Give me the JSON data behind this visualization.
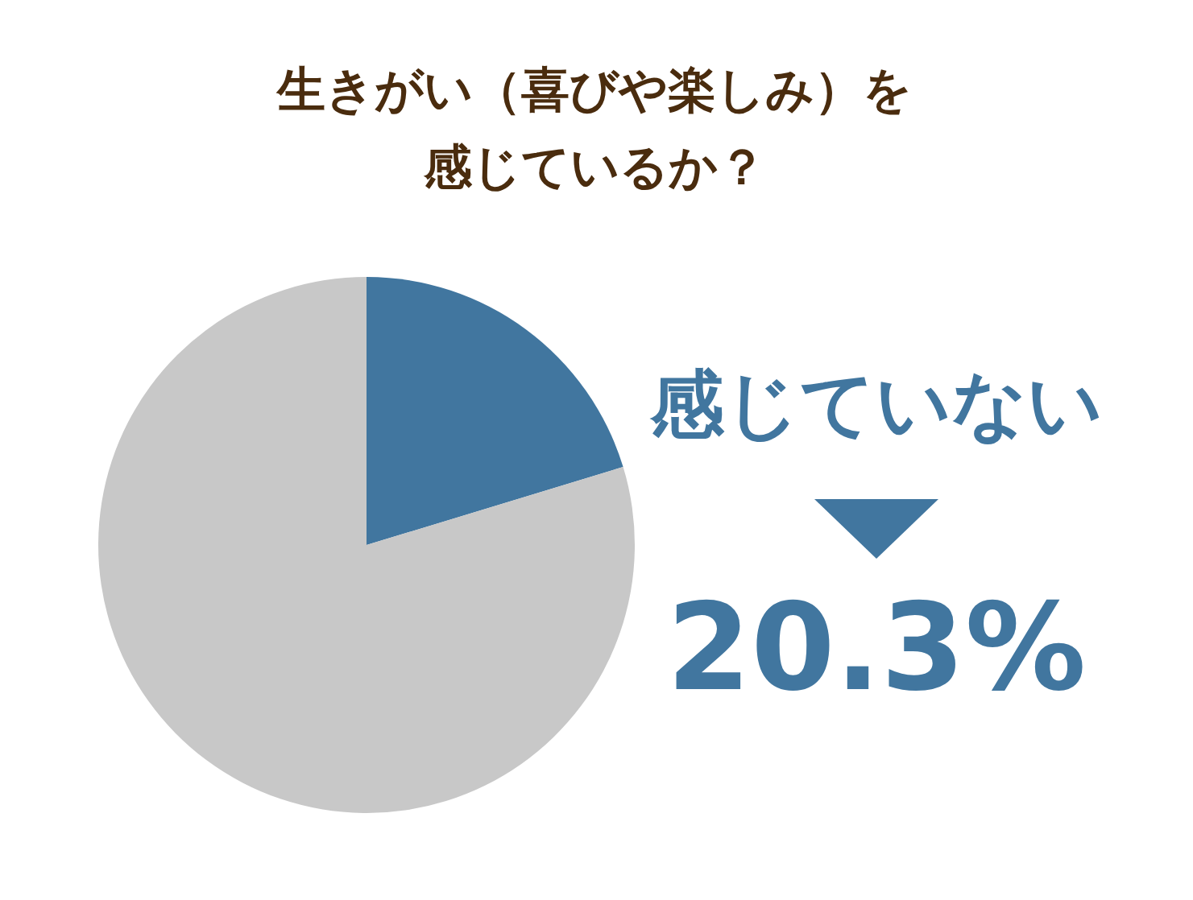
{
  "chart_data": {
    "type": "pie",
    "title": "生きがい（喜びや楽しみ）を感じているか？",
    "categories": [
      "感じていない",
      null
    ],
    "values": [
      20.3,
      79.7
    ],
    "colors": [
      "#41769f",
      "#c8c8c8"
    ],
    "value_labels": [
      "20.3%",
      null
    ],
    "legend": false
  }
}
